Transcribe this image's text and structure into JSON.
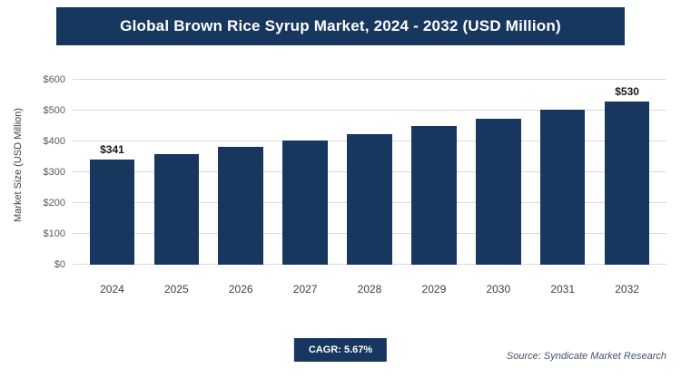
{
  "header": {
    "title": "Global Brown Rice Syrup Market, 2024 - 2032 (USD Million)"
  },
  "chart_data": {
    "type": "bar",
    "title": "Global Brown Rice Syrup Market, 2024 - 2032 (USD Million)",
    "categories": [
      "2024",
      "2025",
      "2026",
      "2027",
      "2028",
      "2029",
      "2030",
      "2031",
      "2032"
    ],
    "values": [
      341,
      360,
      381,
      402,
      425,
      449,
      475,
      502,
      530
    ],
    "xlabel": "",
    "ylabel": "Market Size (USD Million)",
    "ylim": [
      0,
      600
    ],
    "ytick_step": 100,
    "ytick_labels": [
      "$0",
      "$100",
      "$200",
      "$300",
      "$400",
      "$500",
      "$600"
    ],
    "grid": true,
    "legend": "none",
    "bar_color": "#17375e",
    "annotations": [
      {
        "index": 0,
        "text": "$341"
      },
      {
        "index": 8,
        "text": "$530"
      }
    ]
  },
  "footer": {
    "cagr_label": "CAGR: 5.67%",
    "source": "Source: Syndicate Market Research"
  },
  "colors": {
    "header_bg": "#17375e",
    "badge_bg": "#17375e",
    "bar": "#17375e",
    "grid_line": "#d9d9d9"
  }
}
